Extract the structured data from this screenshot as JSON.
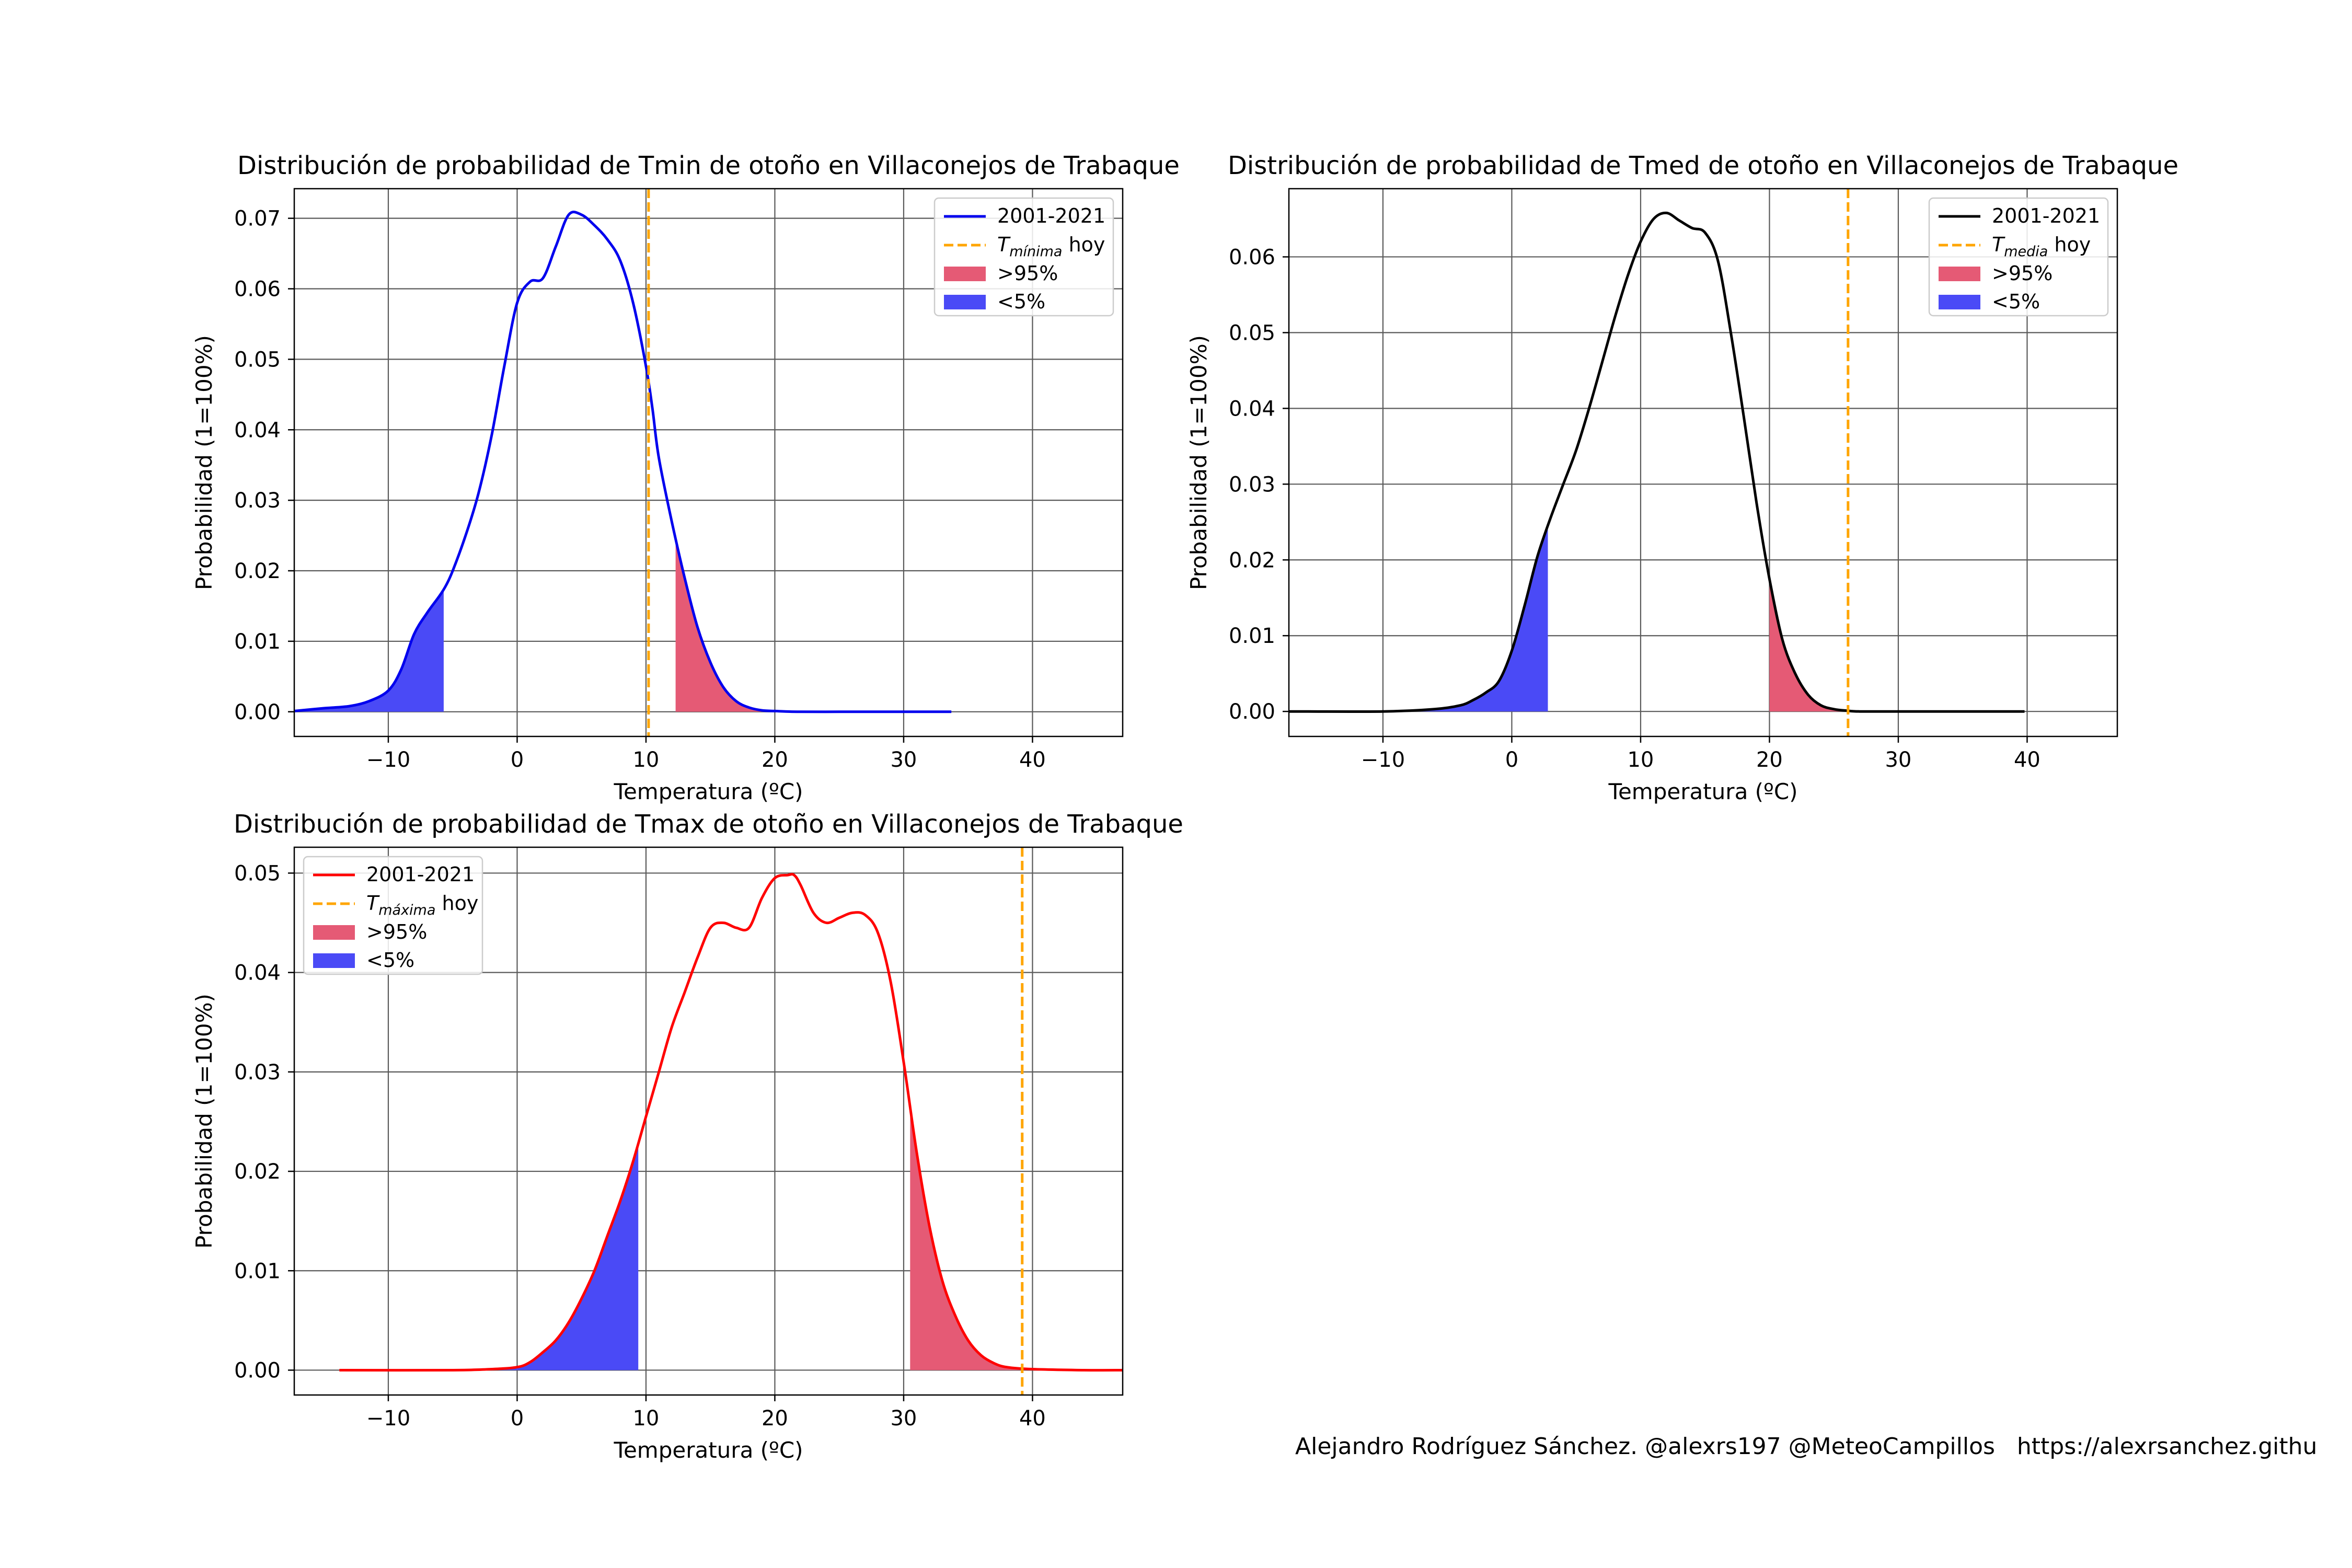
{
  "figure": {
    "footer": "Alejandro Rodríguez Sánchez. @alexrs197 @MeteoCampillos   https://alexrsanchez.githu",
    "colors": {
      "hot": "#e55a75",
      "cold": "#4a4af6",
      "today_line": "#ffa500",
      "grid": "#5a5a5a"
    }
  },
  "chart_data": [
    {
      "type": "area",
      "title": "Distribución de probabilidad de Tmin de otoño en Villaconejos de Trabaque",
      "xlabel": "Temperatura (ºC)",
      "ylabel": "Probabilidad (1=100%)",
      "xlim": [
        -17.3,
        47
      ],
      "ylim": [
        -0.0035,
        0.0742
      ],
      "xticks": [
        -10,
        0,
        10,
        20,
        30,
        40
      ],
      "xtick_labels": [
        "−10",
        "0",
        "10",
        "20",
        "30",
        "40"
      ],
      "yticks": [
        0,
        0.01,
        0.02,
        0.03,
        0.04,
        0.05,
        0.06,
        0.07
      ],
      "ytick_labels": [
        "0.00",
        "0.01",
        "0.02",
        "0.03",
        "0.04",
        "0.05",
        "0.06",
        "0.07"
      ],
      "grid": true,
      "legend_position": "upper-right",
      "legend": {
        "series": "2001-2021",
        "today_main": "T",
        "today_sub": "mínima",
        "today_suffix": " hoy",
        "hot": ">95%",
        "cold": "<5%"
      },
      "line_color": "#0000ee",
      "series": [
        {
          "name": "2001-2021",
          "x": [
            -17.3,
            -15,
            -13,
            -11.5,
            -10,
            -9,
            -8,
            -7,
            -6,
            -5.5,
            -5,
            -4,
            -3,
            -2,
            -1,
            0,
            1,
            2,
            3,
            4,
            5,
            6,
            7,
            8,
            9,
            10,
            10.5,
            11,
            12,
            13,
            14,
            15,
            16,
            17,
            18,
            19,
            20,
            21,
            22,
            25,
            28,
            30,
            33.7
          ],
          "y": [
            0.0001,
            0.0005,
            0.0008,
            0.0015,
            0.003,
            0.006,
            0.011,
            0.014,
            0.0165,
            0.018,
            0.02,
            0.025,
            0.031,
            0.039,
            0.049,
            0.058,
            0.061,
            0.0615,
            0.066,
            0.0705,
            0.0705,
            0.069,
            0.067,
            0.064,
            0.058,
            0.049,
            0.043,
            0.036,
            0.027,
            0.019,
            0.012,
            0.007,
            0.0035,
            0.0015,
            0.0006,
            0.0002,
            0.0001,
            3e-05,
            0,
            0,
            0,
            0,
            0
          ]
        }
      ],
      "today": 10.2,
      "p5": -5.7,
      "p95": 12.3
    },
    {
      "type": "area",
      "title": "Distribución de probabilidad de Tmed de otoño en Villaconejos de Trabaque",
      "xlabel": "Temperatura (ºC)",
      "ylabel": "Probabilidad (1=100%)",
      "xlim": [
        -17.3,
        47
      ],
      "ylim": [
        -0.0033,
        0.069
      ],
      "xticks": [
        -10,
        0,
        10,
        20,
        30,
        40
      ],
      "xtick_labels": [
        "−10",
        "0",
        "10",
        "20",
        "30",
        "40"
      ],
      "yticks": [
        0,
        0.01,
        0.02,
        0.03,
        0.04,
        0.05,
        0.06
      ],
      "ytick_labels": [
        "0.00",
        "0.01",
        "0.02",
        "0.03",
        "0.04",
        "0.05",
        "0.06"
      ],
      "grid": true,
      "legend_position": "upper-right",
      "legend": {
        "series": "2001-2021",
        "today_main": "T",
        "today_sub": "media",
        "today_suffix": " hoy",
        "hot": ">95%",
        "cold": "<5%"
      },
      "line_color": "#000000",
      "series": [
        {
          "name": "2001-2021",
          "x": [
            -17.3,
            -10,
            -6,
            -4,
            -3,
            -2,
            -1,
            0,
            1,
            2,
            3,
            4,
            5,
            6,
            7,
            8,
            9,
            10,
            11,
            12,
            13,
            14,
            15,
            16,
            17,
            18,
            19,
            20,
            21,
            22,
            23,
            24,
            25,
            26,
            27,
            30,
            35,
            39.8
          ],
          "y": [
            0,
            0,
            0.0003,
            0.0008,
            0.0015,
            0.0025,
            0.004,
            0.008,
            0.014,
            0.0205,
            0.0255,
            0.03,
            0.0345,
            0.04,
            0.046,
            0.052,
            0.0575,
            0.062,
            0.065,
            0.0658,
            0.0648,
            0.0638,
            0.0632,
            0.0595,
            0.05,
            0.039,
            0.0275,
            0.0175,
            0.0095,
            0.005,
            0.0022,
            0.0008,
            0.0003,
            0.0001,
            0,
            0,
            0,
            0
          ]
        }
      ],
      "today": 26.1,
      "p5": 2.8,
      "p95": 20
    },
    {
      "type": "area",
      "title": "Distribución de probabilidad de Tmax de otoño en Villaconejos de Trabaque",
      "xlabel": "Temperatura (ºC)",
      "ylabel": "Probabilidad (1=100%)",
      "xlim": [
        -17.3,
        47
      ],
      "ylim": [
        -0.0025,
        0.0526
      ],
      "xticks": [
        -10,
        0,
        10,
        20,
        30,
        40
      ],
      "xtick_labels": [
        "−10",
        "0",
        "10",
        "20",
        "30",
        "40"
      ],
      "yticks": [
        0,
        0.01,
        0.02,
        0.03,
        0.04,
        0.05
      ],
      "ytick_labels": [
        "0.00",
        "0.01",
        "0.02",
        "0.03",
        "0.04",
        "0.05"
      ],
      "grid": true,
      "legend_position": "upper-left",
      "legend": {
        "series": "2001-2021",
        "today_main": "T",
        "today_sub": "máxima",
        "today_suffix": " hoy",
        "hot": ">95%",
        "cold": "<5%"
      },
      "line_color": "#ff0000",
      "series": [
        {
          "name": "2001-2021",
          "x": [
            -13.8,
            -5,
            -2,
            0,
            1,
            2,
            3,
            4,
            5,
            6,
            7,
            8,
            9,
            10,
            11,
            12,
            13,
            14,
            15,
            16,
            17,
            18,
            19,
            20,
            21,
            21.5,
            22,
            23,
            24,
            25,
            26,
            27,
            28,
            29,
            30,
            31,
            32,
            33,
            34,
            35,
            36,
            37,
            38,
            40,
            44,
            47
          ],
          "y": [
            0,
            0,
            0.0001,
            0.0003,
            0.0008,
            0.0018,
            0.003,
            0.0048,
            0.0072,
            0.01,
            0.0135,
            0.017,
            0.021,
            0.0255,
            0.03,
            0.0345,
            0.038,
            0.0415,
            0.0445,
            0.045,
            0.0445,
            0.0445,
            0.0475,
            0.0495,
            0.0498,
            0.0498,
            0.0488,
            0.046,
            0.045,
            0.0455,
            0.046,
            0.0458,
            0.044,
            0.039,
            0.031,
            0.022,
            0.0145,
            0.009,
            0.0055,
            0.003,
            0.0015,
            0.0007,
            0.0003,
            0.0001,
            0,
            0
          ]
        }
      ],
      "today": 39.2,
      "p5": 9.4,
      "p95": 30.5
    }
  ]
}
